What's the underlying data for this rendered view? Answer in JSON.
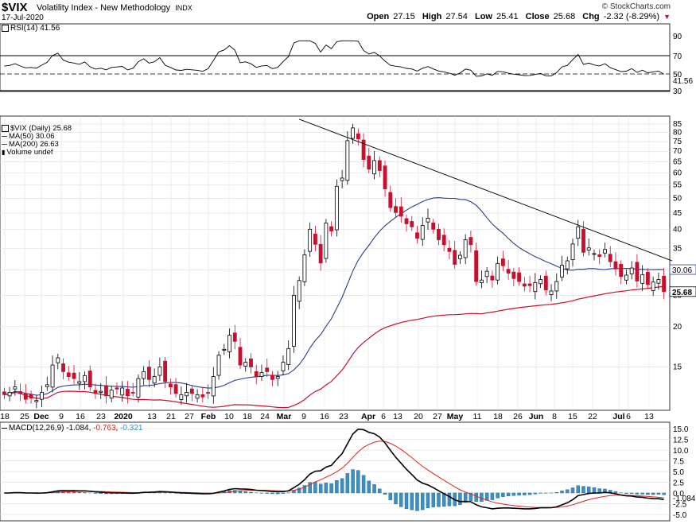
{
  "header": {
    "symbol": "$VIX",
    "name": "Volatility Index - New Methodology",
    "exchange": "INDX",
    "date": "17-Jul-2020",
    "brand": "© StockCharts.com",
    "open_label": "Open",
    "open": "27.15",
    "high_label": "High",
    "high": "27.54",
    "low_label": "Low",
    "low": "25.41",
    "close_label": "Close",
    "close": "25.68",
    "chg_label": "Chg",
    "chg": "-2.32 (-8.29%)"
  },
  "colors": {
    "up": "#000000",
    "down": "#c8102e",
    "ma50": "#2a3a8c",
    "ma200": "#c8102e",
    "rsi": "#000000",
    "rsi_fill": "#4d7a4d",
    "hist": "#3a8fc4",
    "macd": "#000000",
    "signal": "#e0241b",
    "grid": "#dddddd"
  },
  "rsi_panel": {
    "legend": "RSI(14) 41.56",
    "last": "41.56",
    "ticks": [
      "90",
      "70",
      "50",
      "30"
    ]
  },
  "price_panel": {
    "legend_main": "$VIX (Daily) 25.68",
    "legend_ma50": "MA(50) 30.06",
    "legend_ma200": "MA(200) 26.63",
    "legend_vol": "Volume undef",
    "last_price": "25.68",
    "last_ma50": "30.06",
    "last_ma200": "26.63",
    "ticks": [
      "85",
      "80",
      "75",
      "70",
      "65",
      "60",
      "55",
      "50",
      "45",
      "40",
      "35",
      "30",
      "25",
      "20",
      "15"
    ]
  },
  "xaxis": {
    "labels": [
      "18",
      "25",
      "Dec",
      "9",
      "16",
      "23",
      "2020",
      "13",
      "21",
      "27",
      "Feb",
      "10",
      "18",
      "24",
      "Mar",
      "9",
      "16",
      "23",
      "Apr",
      "6",
      "13",
      "20",
      "27",
      "May",
      "11",
      "18",
      "26",
      "Jun",
      "8",
      "15",
      "22",
      "Jul",
      "6",
      "13"
    ]
  },
  "macd_panel": {
    "legend_title": "MACD(12,26,9)",
    "legend_macd": "-1.084",
    "legend_signal": "-0.763",
    "legend_hist": "-0.321",
    "last": "-1.084",
    "ticks": [
      "15.0",
      "12.5",
      "10.0",
      "7.5",
      "5.0",
      "2.5",
      "0.0",
      "-2.5",
      "-5.0"
    ]
  },
  "chart_data": {
    "type": "candlestick",
    "title": "$VIX Volatility Index - New Methodology INDX",
    "period": "Daily",
    "yscale": "log",
    "ylim": [
      11,
      90
    ],
    "trendline": {
      "from": [
        "2020-03-10",
        88
      ],
      "to": [
        "2020-07-20",
        32
      ]
    },
    "series": [
      {
        "name": "$VIX (Daily)",
        "close_last": 25.68,
        "closes": [
          12.3,
          12.5,
          13.0,
          12.4,
          11.9,
          12.0,
          11.8,
          12.5,
          13.2,
          15.2,
          16.0,
          14.5,
          14.0,
          13.8,
          13.5,
          14.1,
          13.0,
          12.4,
          12.6,
          12.2,
          12.7,
          12.8,
          12.9,
          12.2,
          12.5,
          13.8,
          14.5,
          13.7,
          14.0,
          15.0,
          13.5,
          13.0,
          12.4,
          12.3,
          12.5,
          12.4,
          12.3,
          12.1,
          12.5,
          14.0,
          16.3,
          17.0,
          18.8,
          18.0,
          15.2,
          15.5,
          15.0,
          14.0,
          14.4,
          14.5,
          13.7,
          14.0,
          15.5,
          17.1,
          25.0,
          27.8,
          33.4,
          40.1,
          36.0,
          31.5,
          41.9,
          39.6,
          54.5,
          57.8,
          75.5,
          82.7,
          76.5,
          66.0,
          61.6,
          65.5,
          61.0,
          53.5,
          46.8,
          45.2,
          44.0,
          41.7,
          40.8,
          37.6,
          41.2,
          43.4,
          40.1,
          37.2,
          35.9,
          34.2,
          31.2,
          33.3,
          37.2,
          35.9,
          27.6,
          27.9,
          29.7,
          27.9,
          31.4,
          30.9,
          29.3,
          28.2,
          27.6,
          26.7,
          26.8,
          27.4,
          28.0,
          26.0,
          25.8,
          27.6,
          31.0,
          32.0,
          36.1,
          40.8,
          34.0,
          35.1,
          33.7,
          33.0,
          34.7,
          31.8,
          30.2,
          28.6,
          28.9,
          30.4,
          27.7,
          29.0,
          27.0,
          27.5,
          28.0,
          25.7
        ]
      },
      {
        "name": "MA(50)",
        "last": 30.06
      },
      {
        "name": "MA(200)",
        "last": 26.63
      }
    ]
  }
}
